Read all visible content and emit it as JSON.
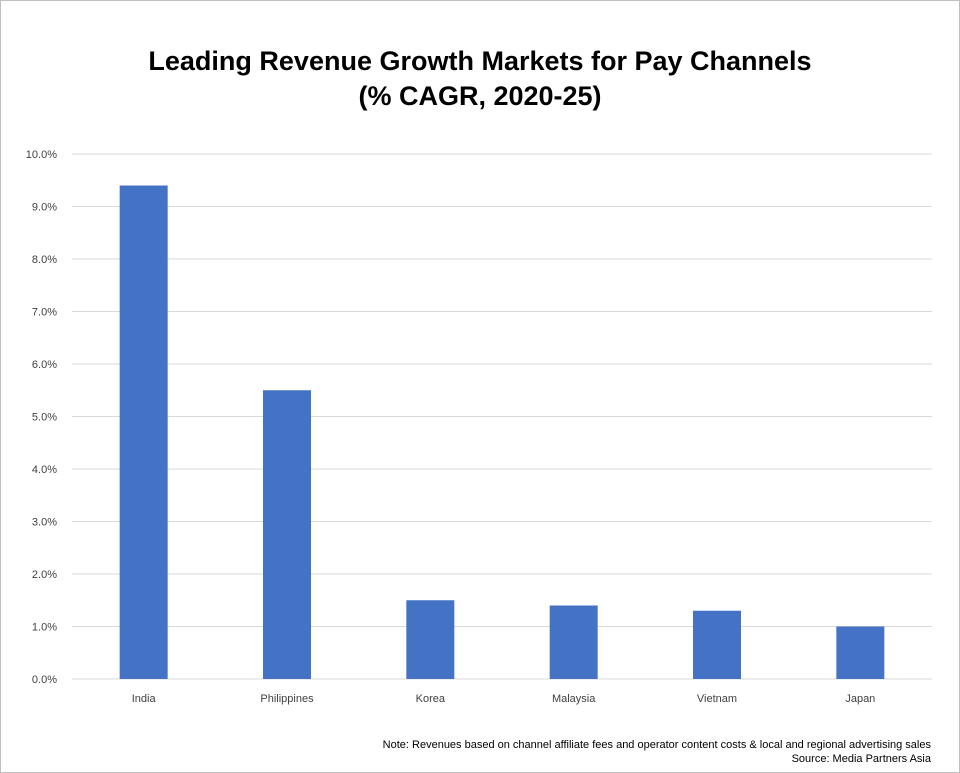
{
  "chart_data": {
    "type": "bar",
    "title": "Leading Revenue Growth Markets for Pay Channels",
    "subtitle": "(% CAGR, 2020-25)",
    "categories": [
      "India",
      "Philippines",
      "Korea",
      "Malaysia",
      "Vietnam",
      "Japan"
    ],
    "values": [
      9.4,
      5.5,
      1.5,
      1.4,
      1.3,
      1.0
    ],
    "ylim": [
      0,
      10
    ],
    "yticks": [
      0,
      1,
      2,
      3,
      4,
      5,
      6,
      7,
      8,
      9,
      10
    ],
    "ytick_labels": [
      "0.0%",
      "1.0%",
      "2.0%",
      "3.0%",
      "4.0%",
      "5.0%",
      "6.0%",
      "7.0%",
      "8.0%",
      "9.0%",
      "10.0%"
    ],
    "xlabel": "",
    "ylabel": "",
    "grid": true,
    "legend": "none",
    "bar_color": "#4472C4",
    "grid_color": "#d9d9d9"
  },
  "footnote": {
    "note": "Note: Revenues based on channel affiliate fees and operator content costs & local and regional advertising sales",
    "source": "Source: Media Partners Asia"
  }
}
